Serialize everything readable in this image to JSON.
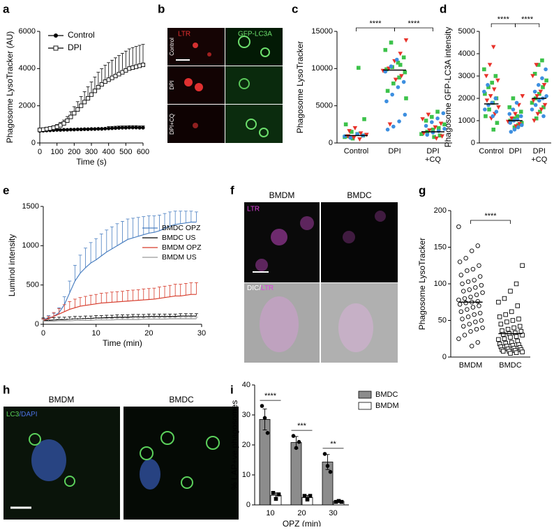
{
  "panel_labels": [
    "a",
    "b",
    "c",
    "d",
    "e",
    "f",
    "g",
    "h",
    "i"
  ],
  "images": {
    "b": {
      "channels": [
        "LTR",
        "GFP-LC3A"
      ],
      "rows": [
        "Control",
        "DPI",
        "DPI+CQ"
      ]
    },
    "f": {
      "columns": [
        "BMDM",
        "BMDC"
      ],
      "top_label": "LTR",
      "bottom_label": [
        "DIC/",
        "LTR"
      ]
    },
    "h": {
      "columns": [
        "BMDM",
        "BMDC"
      ],
      "label": [
        "LC3",
        "/DAPI"
      ]
    }
  },
  "chart_data": [
    {
      "type": "line",
      "ylabel": "Phagosome LysoTracker (AU)",
      "xlabel": "Time (s)",
      "x": [
        0,
        20,
        40,
        60,
        80,
        100,
        120,
        140,
        160,
        180,
        200,
        220,
        240,
        260,
        280,
        300,
        320,
        340,
        360,
        380,
        400,
        420,
        440,
        460,
        480,
        500,
        520,
        540,
        560,
        580,
        600
      ],
      "xlim": [
        0,
        600
      ],
      "xticks": [
        0,
        100,
        200,
        300,
        400,
        500,
        600
      ],
      "ylim": [
        0,
        6000
      ],
      "yticks": [
        0,
        2000,
        4000,
        6000
      ],
      "series": [
        {
          "name": "Control",
          "color": "#000000",
          "marker": "circle",
          "values": [
            650,
            660,
            670,
            680,
            690,
            700,
            700,
            710,
            710,
            720,
            720,
            730,
            730,
            740,
            740,
            750,
            750,
            760,
            760,
            770,
            780,
            790,
            800,
            810,
            820,
            820,
            830,
            830,
            830,
            820,
            820
          ],
          "errors": [
            30,
            30,
            30,
            30,
            30,
            30,
            30,
            30,
            30,
            30,
            30,
            30,
            30,
            30,
            30,
            30,
            30,
            30,
            30,
            30,
            100,
            100,
            100,
            100,
            100,
            100,
            100,
            100,
            100,
            100,
            100
          ]
        },
        {
          "name": "DPI",
          "color": "#000000",
          "marker": "square-open",
          "values": [
            700,
            720,
            750,
            780,
            820,
            870,
            950,
            1050,
            1200,
            1400,
            1600,
            1800,
            2000,
            2200,
            2400,
            2600,
            2800,
            3000,
            3150,
            3300,
            3400,
            3500,
            3600,
            3700,
            3800,
            3900,
            4000,
            4050,
            4100,
            4150,
            4200
          ],
          "errors": [
            60,
            70,
            80,
            90,
            100,
            120,
            150,
            180,
            220,
            280,
            350,
            420,
            500,
            560,
            620,
            680,
            740,
            800,
            840,
            880,
            920,
            950,
            980,
            1000,
            1020,
            1040,
            1060,
            1080,
            1090,
            1100,
            1100
          ]
        }
      ]
    },
    {
      "type": "strip",
      "ylabel": "Phagosome LysoTracker",
      "categories": [
        [
          "Control"
        ],
        [
          "DPI"
        ],
        [
          "DPI",
          "+CQ"
        ]
      ],
      "ylim": [
        0,
        15000
      ],
      "yticks": [
        0,
        5000,
        10000,
        15000
      ],
      "medians": [
        1000,
        9800,
        1500
      ],
      "comparisons": [
        {
          "from": 0,
          "to": 1,
          "label": "****"
        },
        {
          "from": 1,
          "to": 2,
          "label": "****"
        }
      ],
      "series": [
        {
          "color": "#3cc24a",
          "marker": "square",
          "values": [
            [
              800,
              1000,
              1200,
              1500,
              2500,
              3200,
              10100,
              600,
              900
            ],
            [
              13500,
              12500,
              11500,
              10800,
              10200,
              9900,
              9500,
              8800,
              8000,
              7000,
              6000,
              10500
            ],
            [
              4200,
              3500,
              3000,
              2500,
              2000,
              1800,
              1500,
              1200,
              1000,
              800
            ]
          ]
        },
        {
          "color": "#e8322a",
          "marker": "triangle-down",
          "values": [
            [
              500,
              700,
              900,
              1100,
              1300,
              2000,
              1600
            ],
            [
              13800,
              12000,
              11000,
              10000,
              9700,
              9000,
              8500,
              2500
            ],
            [
              3800,
              3200,
              2600,
              2100,
              1700,
              1300,
              900,
              600
            ]
          ]
        },
        {
          "color": "#3d8fe0",
          "marker": "circle",
          "values": [
            [
              700,
              900,
              1000,
              1200
            ],
            [
              11200,
              10300,
              9600,
              8200,
              7500,
              6500,
              5600,
              3800,
              2900,
              2200,
              1800
            ],
            [
              4000,
              3300,
              2800,
              2300,
              1900,
              1600,
              1400,
              1100
            ]
          ]
        }
      ]
    },
    {
      "type": "strip",
      "ylabel": "Phagosome GFP-LC3A intensity",
      "categories": [
        [
          "Control"
        ],
        [
          "DPI"
        ],
        [
          "DPI",
          "+CQ"
        ]
      ],
      "ylim": [
        0,
        5000
      ],
      "yticks": [
        0,
        1000,
        2000,
        3000,
        4000,
        5000
      ],
      "medians": [
        1750,
        1000,
        2000
      ],
      "comparisons": [
        {
          "from": 0,
          "to": 1,
          "label": "****"
        },
        {
          "from": 1,
          "to": 2,
          "label": "****"
        }
      ],
      "series": [
        {
          "color": "#3cc24a",
          "marker": "square",
          "values": [
            [
              3300,
              3000,
              2700,
              2500,
              2200,
              2000,
              1800,
              1500,
              1200,
              900,
              600
            ],
            [
              2000,
              1600,
              1400,
              1200,
              1100,
              1000,
              900,
              800,
              700
            ],
            [
              3700,
              3500,
              3100,
              2800,
              2500,
              2200,
              2000,
              1800,
              1600,
              1400,
              1100
            ]
          ]
        },
        {
          "color": "#e8322a",
          "marker": "triangle-down",
          "values": [
            [
              4300,
              3500,
              3000,
              2800,
              2400,
              2100,
              1900,
              1600,
              1300,
              1100
            ],
            [
              2100,
              1700,
              1300,
              1100,
              950,
              850,
              750
            ],
            [
              3500,
              3000,
              2600,
              2300,
              2100,
              1900,
              1700,
              1500,
              1300,
              1000
            ]
          ]
        },
        {
          "color": "#3d8fe0",
          "marker": "circle",
          "values": [
            [
              2600,
              2300,
              2000,
              1800,
              1700,
              1500,
              1400,
              1200
            ],
            [
              1800,
              1500,
              1300,
              1200,
              1050,
              1000,
              900,
              800,
              700,
              600,
              500
            ],
            [
              3300,
              2900,
              2600,
              2300,
              2100,
              2000,
              1900,
              1700,
              1500,
              1200
            ]
          ]
        }
      ]
    },
    {
      "type": "line",
      "ylabel": "Luminol intensity",
      "xlabel": "Time (min)",
      "x": [
        0,
        1,
        2,
        3,
        4,
        5,
        6,
        7,
        8,
        9,
        10,
        11,
        12,
        13,
        14,
        15,
        16,
        17,
        18,
        19,
        20,
        21,
        22,
        23,
        24,
        25,
        26,
        27,
        28,
        29
      ],
      "xlim": [
        0,
        30
      ],
      "xticks": [
        0,
        10,
        20,
        30
      ],
      "ylim": [
        0,
        1500
      ],
      "yticks": [
        0,
        500,
        1000,
        1500
      ],
      "series": [
        {
          "name": "BMDC OPZ",
          "color": "#4a7fc1",
          "values": [
            60,
            80,
            100,
            150,
            250,
            400,
            550,
            650,
            720,
            780,
            820,
            870,
            920,
            960,
            1000,
            1040,
            1080,
            1100,
            1120,
            1140,
            1160,
            1170,
            1190,
            1220,
            1250,
            1270,
            1280,
            1290,
            1300,
            1300
          ],
          "errors": [
            20,
            30,
            40,
            60,
            100,
            150,
            200,
            230,
            250,
            260,
            270,
            280,
            280,
            280,
            280,
            270,
            260,
            250,
            240,
            230,
            220,
            210,
            200,
            190,
            180,
            170,
            160,
            150,
            140,
            130
          ]
        },
        {
          "name": "BMDC US",
          "color": "#000000",
          "values": [
            50,
            50,
            55,
            60,
            60,
            65,
            70,
            70,
            75,
            75,
            80,
            80,
            85,
            85,
            90,
            90,
            90,
            95,
            95,
            95,
            100,
            100,
            100,
            100,
            100,
            100,
            105,
            105,
            105,
            105
          ],
          "errors": [
            30,
            30,
            30,
            30,
            30,
            30,
            30,
            30,
            30,
            30,
            30,
            30,
            30,
            30,
            30,
            30,
            30,
            30,
            30,
            30,
            30,
            30,
            30,
            30,
            30,
            30,
            30,
            30,
            30,
            30
          ]
        },
        {
          "name": "BMDM OPZ",
          "color": "#d63a2a",
          "values": [
            50,
            70,
            100,
            130,
            160,
            190,
            210,
            230,
            240,
            250,
            260,
            270,
            275,
            280,
            285,
            290,
            295,
            300,
            305,
            310,
            315,
            320,
            330,
            340,
            350,
            360,
            360,
            370,
            380,
            380
          ],
          "errors": [
            20,
            30,
            50,
            70,
            90,
            100,
            110,
            110,
            115,
            120,
            120,
            125,
            125,
            130,
            130,
            130,
            135,
            135,
            135,
            140,
            140,
            140,
            145,
            145,
            145,
            150,
            150,
            150,
            150,
            150
          ]
        },
        {
          "name": "BMDM US",
          "color": "#999999",
          "values": [
            40,
            40,
            40,
            45,
            45,
            45,
            50,
            50,
            50,
            50,
            55,
            55,
            55,
            55,
            60,
            60,
            60,
            60,
            60,
            65,
            65,
            65,
            65,
            65,
            70,
            70,
            70,
            70,
            70,
            70
          ],
          "errors": [
            20,
            20,
            20,
            20,
            20,
            20,
            20,
            20,
            20,
            20,
            20,
            20,
            20,
            20,
            20,
            20,
            20,
            20,
            20,
            20,
            20,
            20,
            20,
            20,
            20,
            20,
            20,
            20,
            20,
            20
          ]
        }
      ]
    },
    {
      "type": "strip",
      "ylabel": "Phagosome LysoTracker",
      "categories": [
        [
          "BMDM"
        ],
        [
          "BMDC"
        ]
      ],
      "ylim": [
        0,
        200
      ],
      "yticks": [
        0,
        50,
        100,
        150,
        200
      ],
      "medians": [
        75,
        32
      ],
      "comparisons": [
        {
          "from": 0,
          "to": 1,
          "label": "****"
        }
      ],
      "series": [
        {
          "color": "#000000",
          "marker": "circle-open",
          "values": [
            [
              178,
              152,
              145,
              135,
              130,
              125,
              120,
              118,
              112,
              110,
              105,
              103,
              100,
              98,
              95,
              92,
              90,
              88,
              85,
              82,
              80,
              78,
              76,
              75,
              74,
              72,
              70,
              68,
              65,
              62,
              60,
              58,
              55,
              52,
              50,
              48,
              45,
              42,
              40,
              38,
              35,
              30,
              25,
              20,
              15
            ],
            []
          ]
        },
        {
          "color": "#000000",
          "marker": "square-open",
          "values": [
            [],
            [
              125,
              100,
              90,
              80,
              75,
              70,
              62,
              58,
              55,
              52,
              50,
              48,
              45,
              42,
              40,
              38,
              36,
              35,
              33,
              32,
              31,
              30,
              28,
              27,
              25,
              24,
              22,
              20,
              19,
              18,
              17,
              16,
              15,
              14,
              13,
              12,
              11,
              10,
              10,
              9,
              8,
              8,
              7,
              6,
              5
            ]
          ]
        }
      ]
    },
    {
      "type": "bar",
      "ylabel": "% LAP+ve phagosomes",
      "xlabel": "OPZ (min)",
      "categories": [
        "10",
        "20",
        "30"
      ],
      "ylim": [
        0,
        40
      ],
      "yticks": [
        0,
        10,
        20,
        30,
        40
      ],
      "significance": [
        "****",
        "***",
        "**"
      ],
      "series": [
        {
          "name": "BMDC",
          "color": "#8c8c8c",
          "point_marker": "circle",
          "values": [
            28.5,
            20.8,
            14.3
          ],
          "errors": [
            3.5,
            2,
            2.5
          ],
          "points": [
            [
              33,
              29,
              24
            ],
            [
              23,
              19,
              21
            ],
            [
              17,
              13,
              11
            ]
          ]
        },
        {
          "name": "BMDM",
          "color": "#ffffff",
          "point_marker": "square",
          "values": [
            3.2,
            2.5,
            1.2
          ],
          "errors": [
            0.8,
            0.6,
            0.2
          ],
          "points": [
            [
              4,
              2,
              3.5
            ],
            [
              3,
              1.8,
              3
            ],
            [
              1,
              1.3,
              1
            ]
          ]
        }
      ]
    }
  ]
}
